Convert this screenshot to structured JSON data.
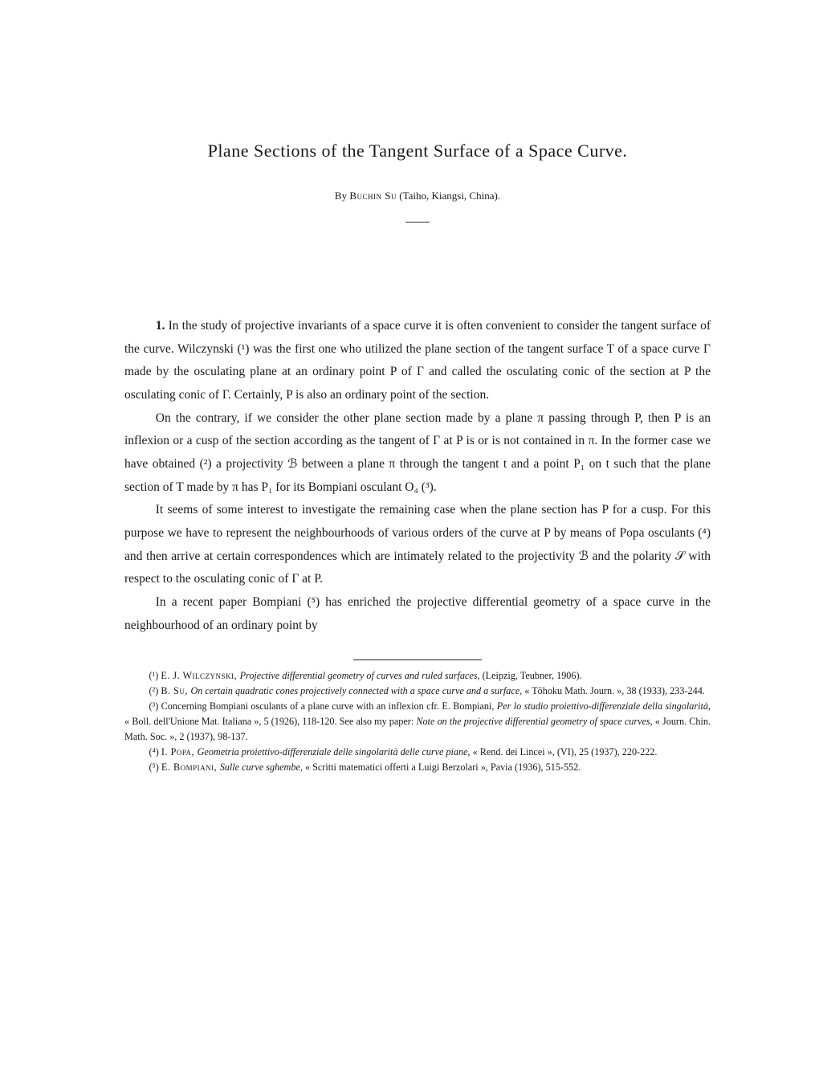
{
  "title": "Plane Sections of the Tangent Surface of a Space Curve.",
  "byline_prefix": "By ",
  "byline_author": "Buchin Su",
  "byline_affiliation": " (Taiho, Kiangsi, China).",
  "para1_lead": "1.",
  "para1": " In the study of projective invariants of a space curve it is often convenient to consider the tangent surface of the curve. Wilczynski (¹) was the first one who utilized the plane section of the tangent surface T of a space curve Γ made by the osculating plane at an ordinary point P of Γ and called the osculating conic of the section at P the osculating conic of Γ. Certainly, P is also an ordinary point of the section.",
  "para2": "On the contrary, if we consider the other plane section made by a plane π passing through P, then P is an inflexion or a cusp of the section according as the tangent of Γ at P is or is not contained in π. In the former case we have obtained (²) a projectivity ℬ between a plane π through the tangent t and a point P₁ on t such that the plane section of T made by π has P₁ for its Bompiani osculant O₄ (³).",
  "para3": "It seems of some interest to investigate the remaining case when the plane section has P for a cusp. For this purpose we have to represent the neighbourhoods of various orders of the curve at P by means of Popa osculants (⁴) and then arrive at certain correspondences which are intimately related to the projectivity ℬ and the polarity 𝒮 with respect to the osculating conic of Γ at P.",
  "para4": "In a recent paper Bompiani (⁵) has enriched the projective differential geometry of a space curve in the neighbourhood of an ordinary point by",
  "footnote1_marker": "(¹) ",
  "footnote1_author": "E. J. Wilczynski, ",
  "footnote1_title": "Projective differential geometry of curves and ruled surfaces,",
  "footnote1_tail": " (Leipzig, Teubner, 1906).",
  "footnote2_marker": "(²) ",
  "footnote2_author": "B. Su, ",
  "footnote2_title": "On certain quadratic cones projectively connected with a space curve and a surface,",
  "footnote2_tail": " « Tôhoku Math. Journ. », 38 (1933), 233-244.",
  "footnote3_marker": "(³) ",
  "footnote3_lead": "Concerning Bompiani osculants of a plane curve with an inflexion cfr. E. Bompiani, ",
  "footnote3_title": "Per lo studio proiettivo-differenziale della singolarità,",
  "footnote3_mid": " « Boll. dell'Unione Mat. Italiana », 5 (1926), 118-120. See also my paper: ",
  "footnote3_title2": "Note on the projective differential geometry of space curves,",
  "footnote3_tail": " « Journ. Chin. Math. Soc. », 2 (1937), 98-137.",
  "footnote4_marker": "(⁴) ",
  "footnote4_author": "I. Popa, ",
  "footnote4_title": "Geometria proiettivo-differenziale delle singolarità delle curve piane,",
  "footnote4_tail": " « Rend. dei Lincei », (VI), 25 (1937), 220-222.",
  "footnote5_marker": "(⁵) ",
  "footnote5_author": "E. Bompiani, ",
  "footnote5_title": "Sulle curve sghembe,",
  "footnote5_tail": " « Scritti matematici offerti a Luigi Berzolari », Pavia (1936), 515-552."
}
